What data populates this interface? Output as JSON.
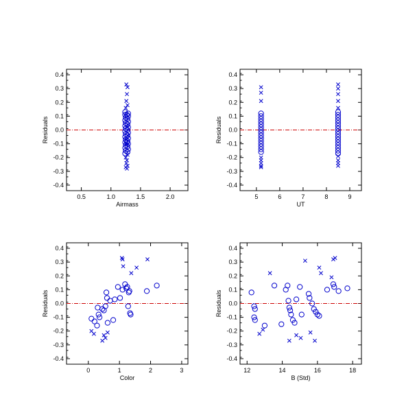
{
  "colors": {
    "points": "#0000cc",
    "zero_line": "#cc0000",
    "axes": "#000000"
  },
  "chart_data": [
    {
      "type": "scatter",
      "xlabel": "Airmass",
      "ylabel": "Residuals",
      "xlim": [
        0.25,
        2.3
      ],
      "ylim": [
        -0.44,
        0.44
      ],
      "xticks": [
        0.5,
        1.0,
        1.5,
        2.0
      ],
      "xtick_labels": [
        "0.5",
        "1.0",
        "1.5",
        "2.0"
      ],
      "yticks": [
        -0.4,
        -0.3,
        -0.2,
        -0.1,
        0.0,
        0.1,
        0.2,
        0.3,
        0.4
      ],
      "ytick_labels": [
        "-0.4",
        "-0.3",
        "-0.2",
        "-0.1",
        "0.0",
        "0.1",
        "0.2",
        "0.3",
        "0.4"
      ],
      "reference_line": 0.0,
      "grid": false,
      "series": [
        {
          "marker": "circle",
          "points": [
            [
              1.24,
              0.13
            ],
            [
              1.24,
              0.11
            ],
            [
              1.25,
              0.09
            ],
            [
              1.24,
              0.07
            ],
            [
              1.25,
              0.05
            ],
            [
              1.24,
              0.03
            ],
            [
              1.25,
              0.01
            ],
            [
              1.24,
              -0.01
            ],
            [
              1.25,
              -0.03
            ],
            [
              1.24,
              -0.05
            ],
            [
              1.25,
              -0.07
            ],
            [
              1.24,
              -0.09
            ],
            [
              1.25,
              -0.11
            ],
            [
              1.24,
              -0.13
            ],
            [
              1.25,
              -0.15
            ],
            [
              1.24,
              -0.17
            ],
            [
              1.29,
              0.12
            ],
            [
              1.29,
              0.1
            ],
            [
              1.28,
              0.08
            ],
            [
              1.29,
              0.06
            ],
            [
              1.28,
              0.04
            ],
            [
              1.29,
              0.02
            ],
            [
              1.28,
              0.0
            ],
            [
              1.29,
              -0.02
            ],
            [
              1.28,
              -0.04
            ],
            [
              1.29,
              -0.06
            ],
            [
              1.28,
              -0.08
            ],
            [
              1.29,
              -0.1
            ],
            [
              1.28,
              -0.12
            ],
            [
              1.29,
              -0.14
            ],
            [
              1.28,
              -0.16
            ],
            [
              1.27,
              0.11
            ],
            [
              1.27,
              -0.09
            ]
          ]
        },
        {
          "marker": "x",
          "points": [
            [
              1.26,
              0.33
            ],
            [
              1.28,
              0.31
            ],
            [
              1.27,
              0.26
            ],
            [
              1.26,
              0.21
            ],
            [
              1.28,
              0.18
            ],
            [
              1.25,
              0.16
            ],
            [
              1.27,
              0.02
            ],
            [
              1.26,
              -0.07
            ],
            [
              1.28,
              -0.18
            ],
            [
              1.25,
              -0.2
            ],
            [
              1.27,
              -0.22
            ],
            [
              1.26,
              -0.24
            ],
            [
              1.28,
              -0.26
            ],
            [
              1.25,
              -0.27
            ],
            [
              1.27,
              -0.28
            ],
            [
              1.26,
              -0.1
            ],
            [
              1.28,
              -0.04
            ]
          ]
        }
      ]
    },
    {
      "type": "scatter",
      "xlabel": "UT",
      "ylabel": "Residuals",
      "xlim": [
        4.3,
        9.5
      ],
      "ylim": [
        -0.44,
        0.44
      ],
      "xticks": [
        5,
        6,
        7,
        8,
        9
      ],
      "xtick_labels": [
        "5",
        "6",
        "7",
        "8",
        "9"
      ],
      "yticks": [
        -0.4,
        -0.3,
        -0.2,
        -0.1,
        0.0,
        0.1,
        0.2,
        0.3,
        0.4
      ],
      "ytick_labels": [
        "-0.4",
        "-0.3",
        "-0.2",
        "-0.1",
        "0.0",
        "0.1",
        "0.2",
        "0.3",
        "0.4"
      ],
      "reference_line": 0.0,
      "grid": false,
      "series": [
        {
          "marker": "circle",
          "points": [
            [
              5.2,
              0.12
            ],
            [
              5.2,
              0.1
            ],
            [
              5.2,
              0.08
            ],
            [
              5.2,
              0.06
            ],
            [
              5.2,
              0.04
            ],
            [
              5.2,
              0.02
            ],
            [
              5.2,
              0.0
            ],
            [
              5.2,
              -0.02
            ],
            [
              5.2,
              -0.04
            ],
            [
              5.2,
              -0.06
            ],
            [
              5.2,
              -0.08
            ],
            [
              5.2,
              -0.1
            ],
            [
              5.2,
              -0.12
            ],
            [
              5.2,
              -0.14
            ],
            [
              5.2,
              -0.16
            ],
            [
              8.5,
              0.13
            ],
            [
              8.5,
              0.11
            ],
            [
              8.5,
              0.09
            ],
            [
              8.5,
              0.07
            ],
            [
              8.5,
              0.05
            ],
            [
              8.5,
              0.03
            ],
            [
              8.5,
              0.01
            ],
            [
              8.5,
              -0.01
            ],
            [
              8.5,
              -0.03
            ],
            [
              8.5,
              -0.05
            ],
            [
              8.5,
              -0.07
            ],
            [
              8.5,
              -0.09
            ],
            [
              8.5,
              -0.11
            ],
            [
              8.5,
              -0.13
            ],
            [
              8.5,
              -0.15
            ],
            [
              8.5,
              -0.17
            ]
          ]
        },
        {
          "marker": "x",
          "points": [
            [
              5.2,
              0.31
            ],
            [
              5.2,
              0.27
            ],
            [
              5.2,
              0.21
            ],
            [
              5.2,
              -0.2
            ],
            [
              5.2,
              -0.22
            ],
            [
              5.2,
              -0.24
            ],
            [
              5.2,
              -0.26
            ],
            [
              5.2,
              -0.27
            ],
            [
              8.5,
              0.33
            ],
            [
              8.5,
              0.3
            ],
            [
              8.5,
              0.26
            ],
            [
              8.5,
              0.21
            ],
            [
              8.5,
              0.16
            ],
            [
              8.5,
              -0.19
            ],
            [
              8.5,
              -0.22
            ],
            [
              8.5,
              -0.24
            ],
            [
              8.5,
              -0.26
            ]
          ]
        }
      ]
    },
    {
      "type": "scatter",
      "xlabel": "Color",
      "ylabel": "Residuals",
      "xlim": [
        -0.7,
        3.2
      ],
      "ylim": [
        -0.44,
        0.44
      ],
      "xticks": [
        0,
        1,
        2,
        3
      ],
      "xtick_labels": [
        "0",
        "1",
        "2",
        "3"
      ],
      "yticks": [
        -0.4,
        -0.3,
        -0.2,
        -0.1,
        0.0,
        0.1,
        0.2,
        0.3,
        0.4
      ],
      "ytick_labels": [
        "-0.4",
        "-0.3",
        "-0.2",
        "-0.1",
        "0.0",
        "0.1",
        "0.2",
        "0.3",
        "0.4"
      ],
      "reference_line": 0.0,
      "grid": false,
      "series": [
        {
          "marker": "circle",
          "points": [
            [
              0.1,
              -0.11
            ],
            [
              0.2,
              -0.13
            ],
            [
              0.28,
              -0.16
            ],
            [
              0.3,
              -0.03
            ],
            [
              0.33,
              -0.08
            ],
            [
              0.36,
              -0.1
            ],
            [
              0.45,
              -0.04
            ],
            [
              0.5,
              -0.05
            ],
            [
              0.55,
              -0.02
            ],
            [
              0.58,
              0.08
            ],
            [
              0.6,
              0.04
            ],
            [
              0.62,
              -0.14
            ],
            [
              0.7,
              0.02
            ],
            [
              0.8,
              -0.12
            ],
            [
              0.85,
              0.03
            ],
            [
              0.95,
              0.12
            ],
            [
              1.02,
              0.04
            ],
            [
              1.1,
              0.1
            ],
            [
              1.18,
              0.14
            ],
            [
              1.22,
              0.11
            ],
            [
              1.25,
              0.12
            ],
            [
              1.28,
              -0.02
            ],
            [
              1.3,
              0.08
            ],
            [
              1.32,
              0.09
            ],
            [
              1.34,
              -0.07
            ],
            [
              1.36,
              -0.08
            ],
            [
              1.88,
              0.09
            ],
            [
              2.2,
              0.13
            ]
          ]
        },
        {
          "marker": "x",
          "points": [
            [
              0.1,
              -0.2
            ],
            [
              0.18,
              -0.22
            ],
            [
              0.45,
              -0.27
            ],
            [
              0.5,
              -0.23
            ],
            [
              0.55,
              -0.25
            ],
            [
              0.62,
              -0.21
            ],
            [
              1.08,
              0.33
            ],
            [
              1.1,
              0.32
            ],
            [
              1.12,
              0.27
            ],
            [
              1.38,
              0.22
            ],
            [
              1.55,
              0.26
            ],
            [
              1.9,
              0.32
            ]
          ]
        }
      ]
    },
    {
      "type": "scatter",
      "xlabel": "B (Std)",
      "ylabel": "Residuals",
      "xlim": [
        11.6,
        18.5
      ],
      "ylim": [
        -0.44,
        0.44
      ],
      "xticks": [
        12,
        14,
        16,
        18
      ],
      "xtick_labels": [
        "12",
        "14",
        "16",
        "18"
      ],
      "yticks": [
        -0.4,
        -0.3,
        -0.2,
        -0.1,
        0.0,
        0.1,
        0.2,
        0.3,
        0.4
      ],
      "ytick_labels": [
        "-0.4",
        "-0.3",
        "-0.2",
        "-0.1",
        "0.0",
        "0.1",
        "0.2",
        "0.3",
        "0.4"
      ],
      "reference_line": 0.0,
      "grid": false,
      "series": [
        {
          "marker": "circle",
          "points": [
            [
              12.25,
              0.08
            ],
            [
              12.4,
              -0.02
            ],
            [
              12.45,
              -0.04
            ],
            [
              12.4,
              -0.1
            ],
            [
              12.45,
              -0.12
            ],
            [
              13.0,
              -0.16
            ],
            [
              13.55,
              0.13
            ],
            [
              13.95,
              -0.15
            ],
            [
              14.2,
              0.1
            ],
            [
              14.3,
              0.13
            ],
            [
              14.35,
              0.02
            ],
            [
              14.4,
              -0.03
            ],
            [
              14.45,
              -0.05
            ],
            [
              14.5,
              -0.08
            ],
            [
              14.6,
              -0.12
            ],
            [
              14.7,
              -0.14
            ],
            [
              14.8,
              0.03
            ],
            [
              15.0,
              0.12
            ],
            [
              15.1,
              -0.08
            ],
            [
              15.5,
              0.07
            ],
            [
              15.55,
              0.04
            ],
            [
              15.7,
              0.0
            ],
            [
              15.8,
              -0.04
            ],
            [
              15.9,
              -0.06
            ],
            [
              16.0,
              -0.08
            ],
            [
              16.1,
              -0.09
            ],
            [
              16.55,
              0.1
            ],
            [
              16.9,
              0.14
            ],
            [
              16.95,
              0.12
            ],
            [
              17.2,
              0.09
            ],
            [
              17.7,
              0.11
            ]
          ]
        },
        {
          "marker": "x",
          "points": [
            [
              12.7,
              -0.22
            ],
            [
              12.9,
              -0.19
            ],
            [
              13.3,
              0.22
            ],
            [
              14.4,
              -0.27
            ],
            [
              14.8,
              -0.23
            ],
            [
              15.05,
              -0.25
            ],
            [
              15.3,
              0.31
            ],
            [
              15.6,
              -0.21
            ],
            [
              15.85,
              -0.27
            ],
            [
              16.1,
              0.26
            ],
            [
              16.2,
              0.22
            ],
            [
              16.8,
              0.19
            ],
            [
              16.9,
              0.32
            ],
            [
              17.0,
              0.33
            ]
          ]
        }
      ]
    }
  ]
}
